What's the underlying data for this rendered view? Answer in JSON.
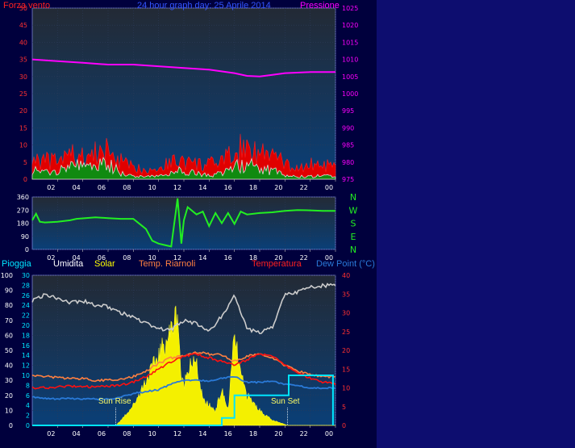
{
  "chart_data": [
    {
      "type": "line",
      "title": "24 hour graph day:  25 Aprile 2014",
      "x_ticks": [
        "02",
        "04",
        "06",
        "08",
        "10",
        "12",
        "14",
        "16",
        "18",
        "20",
        "22",
        "00"
      ],
      "left_axis": {
        "label": "Forza vento",
        "ticks": [
          0,
          5,
          10,
          15,
          20,
          25,
          30,
          35,
          40,
          45,
          50
        ],
        "ylim": [
          0,
          50
        ],
        "color": "#ff2020"
      },
      "right_axis": {
        "label": "Pressione",
        "ticks": [
          975,
          980,
          985,
          990,
          995,
          1000,
          1005,
          1010,
          1015,
          1020,
          1025
        ],
        "ylim": [
          975,
          1025
        ],
        "color": "#ff00ff"
      },
      "series": [
        {
          "name": "Forza vento",
          "color": "#ff0000",
          "hours": [
            0,
            1,
            2,
            3,
            4,
            5,
            6,
            7,
            8,
            9,
            10,
            11,
            12,
            13,
            14,
            15,
            16,
            17,
            18,
            19,
            20,
            21,
            22,
            23,
            24
          ],
          "values": [
            6,
            5,
            5,
            7,
            6,
            7,
            8,
            5,
            3,
            3,
            3,
            5,
            5,
            4,
            4,
            5,
            7,
            10,
            7,
            7,
            4,
            3,
            4,
            4,
            3
          ]
        },
        {
          "name": "Raffica",
          "color": "#00aa00",
          "hours": [
            0,
            1,
            2,
            3,
            4,
            5,
            6,
            7,
            8,
            9,
            10,
            11,
            12,
            13,
            14,
            15,
            16,
            17,
            18,
            19,
            20,
            21,
            22,
            23,
            24
          ],
          "values": [
            3,
            2,
            3,
            5,
            4,
            4,
            5,
            2,
            1,
            1,
            1,
            2,
            3,
            2,
            1,
            2,
            4,
            5,
            3,
            3,
            1,
            1,
            1,
            1,
            1
          ]
        },
        {
          "name": "Pressione",
          "color": "#ff00ff",
          "hours": [
            0,
            2,
            4,
            6,
            8,
            10,
            12,
            14,
            16,
            17,
            18,
            19,
            20,
            22,
            24
          ],
          "values": [
            1010,
            1009.5,
            1009,
            1008.5,
            1008.5,
            1008,
            1007.5,
            1007,
            1006,
            1005.2,
            1005,
            1005.5,
            1006,
            1006.3,
            1006.3
          ]
        }
      ]
    },
    {
      "type": "line",
      "x_ticks": [
        "02",
        "04",
        "06",
        "08",
        "10",
        "12",
        "14",
        "16",
        "18",
        "20",
        "22",
        "00"
      ],
      "left_axis": {
        "ticks": [
          0,
          90,
          180,
          270,
          360
        ],
        "ylim": [
          0,
          360
        ]
      },
      "compass": [
        "N",
        "W",
        "S",
        "E",
        "N"
      ],
      "series": [
        {
          "name": "Direzione vento",
          "color": "#22ee22",
          "hours": [
            0,
            0.3,
            0.6,
            1,
            2,
            3,
            3.5,
            5,
            6,
            7,
            8,
            9,
            9.5,
            10,
            10.5,
            11,
            11.5,
            11.8,
            12,
            12.3,
            13,
            13.5,
            14,
            14.5,
            15,
            15.5,
            16,
            16.5,
            17,
            18,
            19,
            20,
            21,
            22,
            23,
            24
          ],
          "values": [
            200,
            245,
            190,
            185,
            190,
            200,
            210,
            220,
            215,
            210,
            210,
            140,
            60,
            40,
            30,
            20,
            350,
            40,
            200,
            290,
            240,
            260,
            160,
            250,
            180,
            250,
            175,
            260,
            240,
            250,
            255,
            265,
            270,
            268,
            265,
            265
          ]
        }
      ]
    },
    {
      "type": "line",
      "x_ticks": [
        "02",
        "04",
        "06",
        "08",
        "10",
        "12",
        "14",
        "16",
        "18",
        "20",
        "22",
        "00"
      ],
      "legend": [
        "Pioggia",
        "Umidita",
        "Solar",
        "Temp. Riarnoli",
        "Temperatura",
        "Dew Point (°C)"
      ],
      "axis_pioggia": {
        "ticks": [
          0,
          10,
          20,
          30,
          40,
          50,
          60,
          70,
          80,
          90,
          100
        ],
        "ylim": [
          0,
          100
        ]
      },
      "axis_mid": {
        "ticks": [
          0,
          2,
          4,
          6,
          8,
          10,
          12,
          14,
          16,
          18,
          20,
          22,
          24,
          26,
          28,
          30
        ],
        "ylim": [
          0,
          30
        ]
      },
      "axis_temp": {
        "ticks": [
          0,
          5,
          10,
          15,
          20,
          25,
          30,
          35,
          40
        ],
        "ylim": [
          0,
          40
        ]
      },
      "annotations": [
        {
          "text": "Sun Rise",
          "hour": 6.6
        },
        {
          "text": "Sun Set",
          "hour": 20.2
        }
      ],
      "series": [
        {
          "name": "Umidita",
          "color": "#cccccc",
          "axis": "pioggia",
          "hours": [
            0,
            1,
            2,
            3,
            4,
            5,
            6,
            7,
            8,
            9,
            10,
            11,
            12,
            13,
            14,
            15,
            16,
            17,
            18,
            19,
            20,
            21,
            22,
            23,
            24
          ],
          "values": [
            83,
            87,
            85,
            82,
            83,
            80,
            79,
            75,
            72,
            68,
            64,
            64,
            70,
            68,
            62,
            73,
            86,
            64,
            62,
            65,
            87,
            89,
            92,
            93,
            94
          ]
        },
        {
          "name": "Solar",
          "color": "#ffff00",
          "axis": "mid",
          "hours": [
            0,
            6.6,
            7,
            8,
            9,
            10,
            11,
            11.5,
            11.8,
            12,
            12.5,
            13,
            13.5,
            14,
            14.5,
            15,
            15.5,
            16,
            16.5,
            17,
            18,
            19,
            20,
            20.2,
            24
          ],
          "values": [
            0,
            0,
            1,
            4,
            9,
            14,
            19,
            23,
            9,
            8,
            13,
            12,
            5,
            4,
            3,
            7,
            3,
            18,
            10,
            6,
            3,
            1,
            0.2,
            0,
            0
          ]
        },
        {
          "name": "Temp. Riarnoli",
          "color": "#ff8040",
          "axis": "temp",
          "hours": [
            0,
            1,
            2,
            3,
            4,
            5,
            6,
            7,
            8,
            9,
            10,
            11,
            12,
            13,
            14,
            15,
            16,
            17,
            18,
            19,
            20,
            21,
            22,
            23,
            24
          ],
          "values": [
            13.5,
            13,
            12.8,
            12.5,
            12.5,
            12,
            12,
            12.3,
            13,
            14.5,
            16.5,
            18,
            18.5,
            19.5,
            19,
            18.8,
            17,
            18.5,
            19,
            18,
            16,
            14.5,
            13.5,
            13,
            13
          ]
        },
        {
          "name": "Temperatura",
          "color": "#ff1010",
          "axis": "temp",
          "hours": [
            0,
            1,
            2,
            3,
            4,
            5,
            6,
            7,
            8,
            9,
            10,
            11,
            12,
            13,
            14,
            15,
            16,
            17,
            18,
            19,
            20,
            21,
            22,
            23,
            24
          ],
          "values": [
            10,
            10,
            10.2,
            10.5,
            10.3,
            10.3,
            10.5,
            10.8,
            11.5,
            13,
            15,
            17,
            18.5,
            19,
            18,
            17,
            16,
            17.5,
            19,
            18.5,
            16,
            14,
            12.5,
            11.5,
            11
          ]
        },
        {
          "name": "Dew Point (°C)",
          "color": "#2a7ad8",
          "axis": "temp",
          "hours": [
            0,
            1,
            2,
            3,
            4,
            5,
            6,
            7,
            8,
            9,
            10,
            11,
            12,
            13,
            14,
            15,
            16,
            17,
            18,
            19,
            20,
            21,
            22,
            23,
            24
          ],
          "values": [
            7.5,
            7.2,
            7,
            7.2,
            7,
            7,
            7,
            7.5,
            8.5,
            9,
            9.5,
            11,
            12,
            12,
            11.8,
            12.5,
            13,
            11.5,
            11.5,
            11.8,
            11,
            10.5,
            10,
            10,
            10
          ]
        },
        {
          "name": "Pioggia",
          "color": "#00e5ff",
          "axis": "pioggia",
          "hours": [
            0,
            15,
            15,
            16,
            16,
            20.3,
            20.3,
            23.8,
            23.8
          ],
          "values": [
            0,
            0,
            1.5,
            1.5,
            6,
            6,
            10,
            10,
            0
          ]
        }
      ]
    }
  ]
}
